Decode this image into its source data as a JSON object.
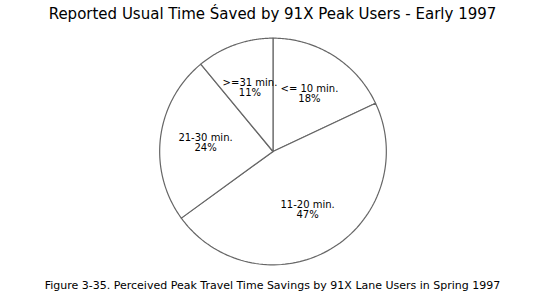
{
  "chart_data": {
    "type": "pie",
    "title": "Reported Usual Time Śaved by 91X Peak Users - Early 1997",
    "caption": "Figure 3-35. Perceived Peak Travel Time Savings by 91X Lane Users in Spring 1997",
    "categories": [
      "<= 10 min.",
      "11-20 min.",
      "21-30 min.",
      ">=31 min."
    ],
    "values": [
      18,
      47,
      24,
      11
    ],
    "value_labels": [
      "18%",
      "47%",
      "24%",
      "11%"
    ],
    "colors": [
      "#ffffff",
      "#ffffff",
      "#ffffff",
      "#ffffff"
    ],
    "data_labels": true
  }
}
